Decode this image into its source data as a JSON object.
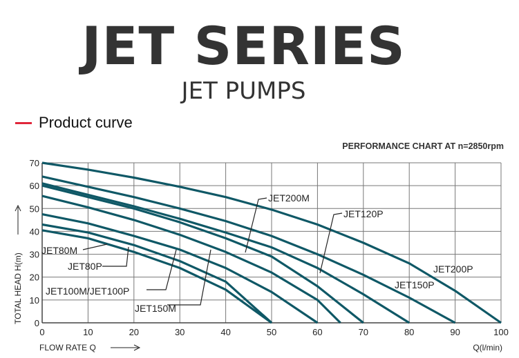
{
  "header": {
    "title": "JET SERIES",
    "subtitle": "JET PUMPS"
  },
  "legend": {
    "label": "Product curve",
    "color": "#e0263a"
  },
  "chart_data": {
    "type": "line",
    "title": "PERFORMANCE CHART AT n=2850rpm",
    "xlabel": "FLOW RATE Q",
    "xunit": "Q(l/min)",
    "ylabel": "TOTAL HEAD H(m)",
    "xlim": [
      0,
      100
    ],
    "ylim": [
      0,
      70
    ],
    "grid": true,
    "xticks": [
      0,
      10,
      20,
      30,
      40,
      50,
      60,
      70,
      80,
      90,
      100
    ],
    "yticks": [
      0,
      10,
      20,
      30,
      40,
      50,
      60,
      70
    ],
    "line_color": "#0f5866",
    "series": [
      {
        "name": "JET200P",
        "x": [
          0,
          10,
          20,
          30,
          40,
          50,
          60,
          70,
          80,
          90,
          100
        ],
        "y": [
          70,
          67,
          63.5,
          59.5,
          55,
          49.5,
          43,
          35,
          26,
          14,
          0
        ]
      },
      {
        "name": "JET150P",
        "x": [
          0,
          10,
          20,
          30,
          40,
          50,
          60,
          70,
          80,
          90
        ],
        "y": [
          64,
          59.5,
          55,
          50,
          44.5,
          38,
          30,
          21,
          11,
          0
        ]
      },
      {
        "name": "JET120P",
        "x": [
          0,
          10,
          20,
          30,
          40,
          50,
          60,
          70,
          80
        ],
        "y": [
          61,
          56,
          51,
          45.5,
          39.5,
          33,
          24,
          12.5,
          0
        ]
      },
      {
        "name": "JET200M",
        "x": [
          0,
          10,
          20,
          30,
          40,
          50,
          60,
          70
        ],
        "y": [
          60,
          55,
          50,
          44,
          37,
          29,
          16,
          0
        ]
      },
      {
        "name": "JET150M",
        "x": [
          0,
          10,
          20,
          30,
          40,
          50,
          60,
          65
        ],
        "y": [
          55.5,
          50.5,
          45,
          38.5,
          31,
          22,
          10,
          0
        ]
      },
      {
        "name": "JET100M/JET100P",
        "x": [
          0,
          10,
          20,
          30,
          40,
          50,
          60
        ],
        "y": [
          47.5,
          43.5,
          38,
          32,
          24,
          13.5,
          0
        ]
      },
      {
        "name": "JET80P",
        "x": [
          0,
          10,
          20,
          30,
          40,
          50
        ],
        "y": [
          43,
          39.5,
          34,
          27,
          18,
          0
        ]
      },
      {
        "name": "JET80M",
        "x": [
          0,
          10,
          20,
          30,
          40,
          50
        ],
        "y": [
          40.5,
          37,
          31,
          24,
          14.5,
          0
        ]
      }
    ]
  }
}
